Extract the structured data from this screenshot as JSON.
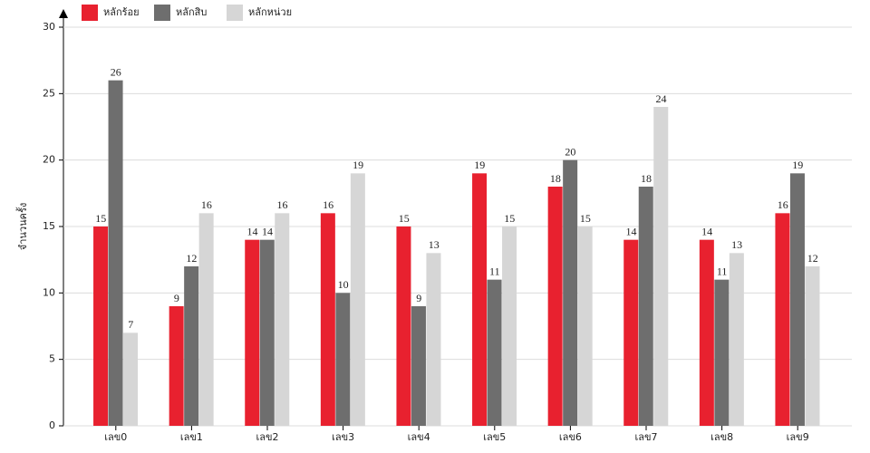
{
  "chart_data": {
    "type": "bar",
    "y_label": "จำนวนครั้ง",
    "categories": [
      "เลข0",
      "เลข1",
      "เลข2",
      "เลข3",
      "เลข4",
      "เลข5",
      "เลข6",
      "เลข7",
      "เลข8",
      "เลข9"
    ],
    "series": [
      {
        "name": "หลักร้อย",
        "color": "#e8212f",
        "values": [
          15,
          9,
          14,
          16,
          15,
          19,
          18,
          14,
          14,
          16
        ]
      },
      {
        "name": "หลักสิบ",
        "color": "#6e6e6e",
        "values": [
          26,
          12,
          14,
          10,
          9,
          11,
          20,
          18,
          11,
          19
        ]
      },
      {
        "name": "หลักหน่วย",
        "color": "#d6d6d6",
        "values": [
          7,
          16,
          16,
          19,
          13,
          15,
          15,
          24,
          13,
          12
        ]
      }
    ],
    "ylim": [
      0,
      30
    ],
    "yticks": [
      0,
      5,
      10,
      15,
      20,
      25,
      30
    ],
    "grid": true
  }
}
